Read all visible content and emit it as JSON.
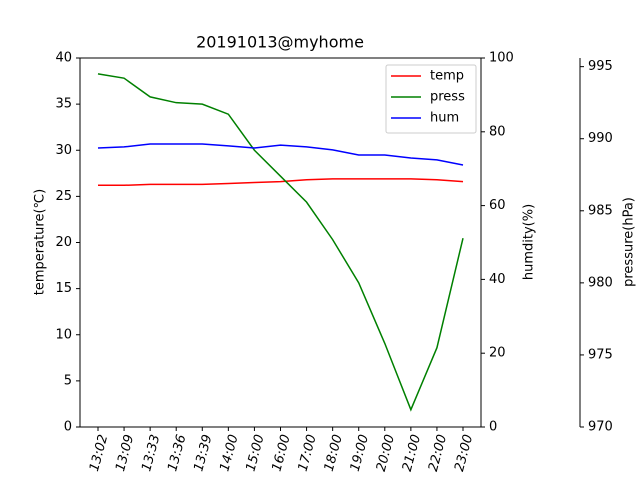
{
  "chart_data": {
    "type": "line",
    "title": "20191013@myhome",
    "categories": [
      "13:02",
      "13:09",
      "13:33",
      "13:36",
      "13:39",
      "14:00",
      "15:00",
      "16:00",
      "17:00",
      "18:00",
      "19:00",
      "20:00",
      "21:00",
      "22:00",
      "23:00"
    ],
    "ylabel": "temperature(℃)",
    "y2label": "humdity(%)",
    "y3label": "pressure(hPa)",
    "ylim": [
      0,
      40
    ],
    "yticks": [
      0,
      5,
      10,
      15,
      20,
      25,
      30,
      35,
      40
    ],
    "y2lim": [
      0,
      100
    ],
    "y2ticks": [
      0,
      20,
      40,
      60,
      80,
      100
    ],
    "y3lim": [
      970,
      995.6
    ],
    "y3ticks": [
      970,
      975,
      980,
      985,
      990,
      995
    ],
    "legend": "upper right",
    "series": [
      {
        "name": "temp",
        "color": "#ff0000",
        "axis": "y",
        "values": [
          26.2,
          26.2,
          26.3,
          26.3,
          26.3,
          26.4,
          26.5,
          26.6,
          26.8,
          26.9,
          26.9,
          26.9,
          26.9,
          26.8,
          26.6
        ]
      },
      {
        "name": "press",
        "color": "#008000",
        "axis": "y3",
        "values": [
          994.5,
          994.2,
          992.9,
          992.5,
          992.4,
          991.7,
          989.2,
          987.4,
          985.6,
          983.0,
          980.0,
          975.8,
          971.2,
          975.5,
          983.1
        ]
      },
      {
        "name": "hum",
        "color": "#0000ff",
        "axis": "y2",
        "values": [
          75.6,
          75.9,
          76.7,
          76.7,
          76.7,
          76.2,
          75.6,
          76.4,
          75.9,
          75.1,
          73.7,
          73.7,
          72.9,
          72.4,
          71.0
        ]
      }
    ]
  }
}
